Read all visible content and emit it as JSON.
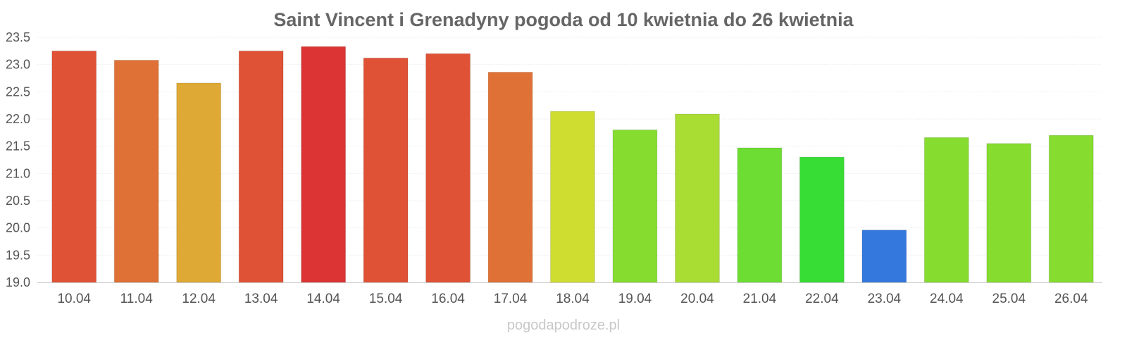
{
  "chart_data": {
    "type": "bar",
    "title": "Saint Vincent i Grenadyny pogoda od 10 kwietnia do 26 kwietnia",
    "xlabel": "",
    "ylabel": "",
    "ylim": [
      19.0,
      23.5
    ],
    "yticks": [
      "19.0",
      "19.5",
      "20.0",
      "20.5",
      "21.0",
      "21.5",
      "22.0",
      "22.5",
      "23.0",
      "23.5"
    ],
    "categories": [
      "10.04",
      "11.04",
      "12.04",
      "13.04",
      "14.04",
      "15.04",
      "16.04",
      "17.04",
      "18.04",
      "19.04",
      "20.04",
      "21.04",
      "22.04",
      "23.04",
      "24.04",
      "25.04",
      "26.04"
    ],
    "values": [
      23.25,
      23.08,
      22.66,
      23.25,
      23.33,
      23.12,
      23.2,
      22.86,
      22.14,
      21.8,
      22.09,
      21.47,
      21.3,
      19.96,
      21.66,
      21.55,
      21.7
    ],
    "colors": [
      "#e05236",
      "#e07136",
      "#dea934",
      "#e05236",
      "#dc3434",
      "#e05236",
      "#e05236",
      "#e07136",
      "#cfdd30",
      "#86dd30",
      "#aadd34",
      "#6ddd34",
      "#37dd34",
      "#3578dd",
      "#86dd30",
      "#86dd30",
      "#86dd30"
    ],
    "grid": true,
    "legend": "none"
  },
  "footer": {
    "credit": "pogodapodroze.pl"
  }
}
